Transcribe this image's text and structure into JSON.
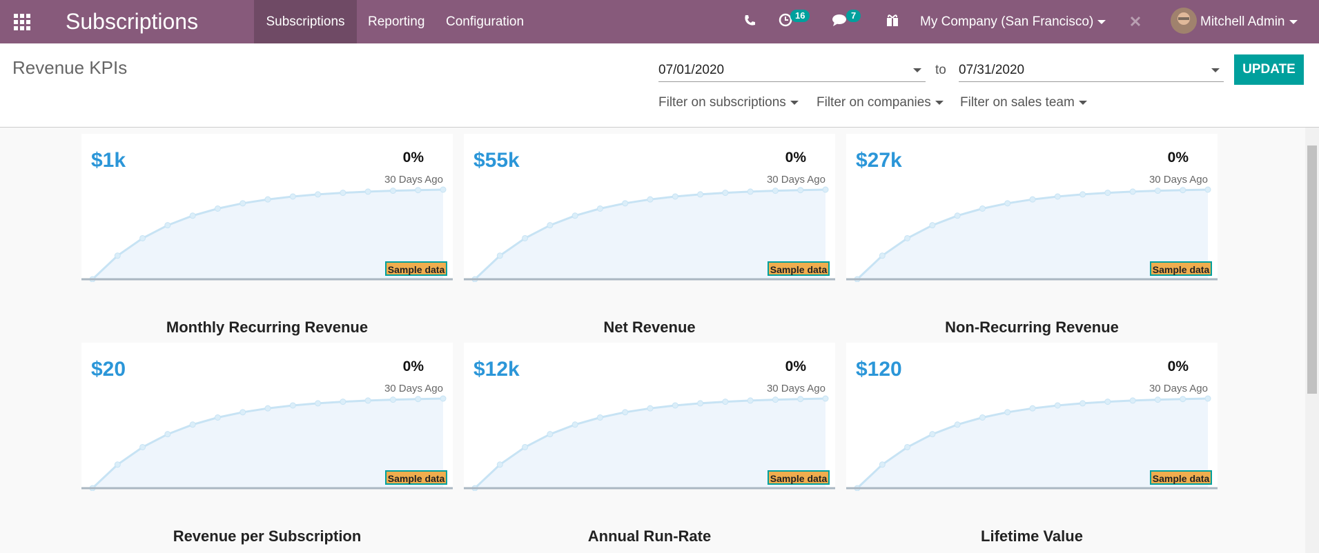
{
  "navbar": {
    "app_title": "Subscriptions",
    "menu": [
      "Subscriptions",
      "Reporting",
      "Configuration"
    ],
    "activity_count": 16,
    "message_count": 7,
    "company": "My Company (San Francisco)",
    "user": "Mitchell Admin"
  },
  "control_panel": {
    "title": "Revenue KPIs",
    "date_from": "07/01/2020",
    "date_separator": "to",
    "date_to": "07/31/2020",
    "update_button": "UPDATE",
    "filters": [
      "Filter on subscriptions",
      "Filter on companies",
      "Filter on sales team"
    ]
  },
  "kpis": [
    {
      "title": "Monthly Recurring Revenue",
      "value": "$1k",
      "change": "0%",
      "period": "30 Days Ago",
      "badge": "Sample data"
    },
    {
      "title": "Net Revenue",
      "value": "$55k",
      "change": "0%",
      "period": "30 Days Ago",
      "badge": "Sample data"
    },
    {
      "title": "Non-Recurring Revenue",
      "value": "$27k",
      "change": "0%",
      "period": "30 Days Ago",
      "badge": "Sample data"
    },
    {
      "title": "Revenue per Subscription",
      "value": "$20",
      "change": "0%",
      "period": "30 Days Ago",
      "badge": "Sample data"
    },
    {
      "title": "Annual Run-Rate",
      "value": "$12k",
      "change": "0%",
      "period": "30 Days Ago",
      "badge": "Sample data"
    },
    {
      "title": "Lifetime Value",
      "value": "$120",
      "change": "0%",
      "period": "30 Days Ago",
      "badge": "Sample data"
    }
  ]
}
